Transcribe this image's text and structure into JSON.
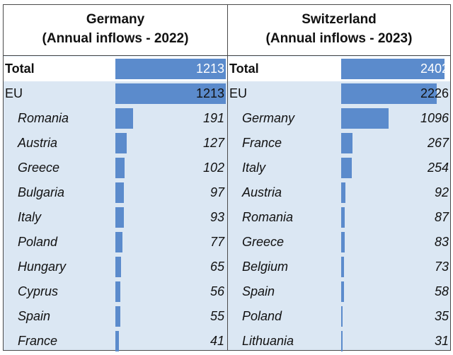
{
  "chart_data": [
    {
      "type": "bar",
      "title": "Germany",
      "subtitle": "(Annual inflows - 2022)",
      "rows": [
        {
          "kind": "total",
          "label": "Total",
          "value": 1213
        },
        {
          "kind": "eu",
          "label": "EU",
          "value": 1213
        },
        {
          "kind": "country",
          "label": "Romania",
          "value": 191
        },
        {
          "kind": "country",
          "label": "Austria",
          "value": 127
        },
        {
          "kind": "country",
          "label": "Greece",
          "value": 102
        },
        {
          "kind": "country",
          "label": "Bulgaria",
          "value": 97
        },
        {
          "kind": "country",
          "label": "Italy",
          "value": 93
        },
        {
          "kind": "country",
          "label": "Poland",
          "value": 77
        },
        {
          "kind": "country",
          "label": "Hungary",
          "value": 65
        },
        {
          "kind": "country",
          "label": "Cyprus",
          "value": 56
        },
        {
          "kind": "country",
          "label": "Spain",
          "value": 55
        },
        {
          "kind": "country",
          "label": "France",
          "value": 41
        }
      ],
      "colors": {
        "bar": "#5b8bcc",
        "background": "#dbe7f3"
      }
    },
    {
      "type": "bar",
      "title": "Switzerland",
      "subtitle": "(Annual inflows - 2023)",
      "rows": [
        {
          "kind": "total",
          "label": "Total",
          "value": 2402
        },
        {
          "kind": "eu",
          "label": "EU",
          "value": 2226
        },
        {
          "kind": "country",
          "label": "Germany",
          "value": 1096
        },
        {
          "kind": "country",
          "label": "France",
          "value": 267
        },
        {
          "kind": "country",
          "label": "Italy",
          "value": 254
        },
        {
          "kind": "country",
          "label": "Austria",
          "value": 92
        },
        {
          "kind": "country",
          "label": "Romania",
          "value": 87
        },
        {
          "kind": "country",
          "label": "Greece",
          "value": 83
        },
        {
          "kind": "country",
          "label": "Belgium",
          "value": 73
        },
        {
          "kind": "country",
          "label": "Spain",
          "value": 58
        },
        {
          "kind": "country",
          "label": "Poland",
          "value": 35
        },
        {
          "kind": "country",
          "label": "Lithuania",
          "value": 31
        }
      ],
      "colors": {
        "bar": "#5b8bcc",
        "background": "#dbe7f3"
      }
    }
  ]
}
